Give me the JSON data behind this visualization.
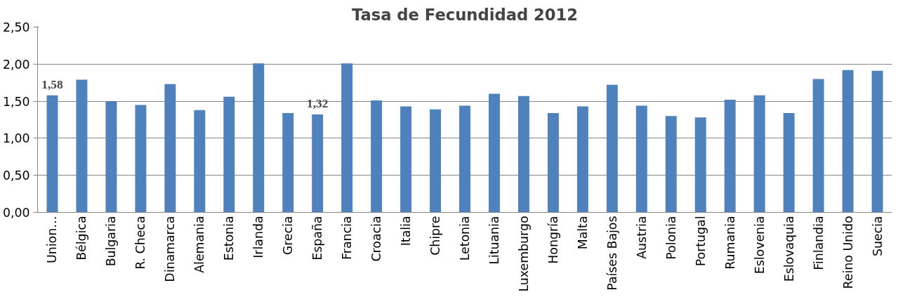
{
  "chart_data": {
    "type": "bar",
    "title": "Tasa de Fecundidad 2012",
    "categories": [
      "Union…",
      "Bélgica",
      "Bulgaria",
      "R. Checa",
      "Dinamarca",
      "Alemania",
      "Estonia",
      "Irlanda",
      "Grecia",
      "España",
      "Francia",
      "Croacia",
      "Italia",
      "Chipre",
      "Letonia",
      "Lituania",
      "Luxemburgo",
      "Hongría",
      "Malta",
      "Países Bajos",
      "Austria",
      "Polonia",
      "Portugal",
      "Rumania",
      "Eslovenia",
      "Eslovaquia",
      "Finlandia",
      "Reino Unido",
      "Suecia"
    ],
    "values": [
      1.58,
      1.79,
      1.5,
      1.45,
      1.73,
      1.38,
      1.56,
      2.01,
      1.34,
      1.32,
      2.01,
      1.51,
      1.43,
      1.39,
      1.44,
      1.6,
      1.57,
      1.34,
      1.43,
      1.72,
      1.44,
      1.3,
      1.28,
      1.52,
      1.58,
      1.34,
      1.8,
      1.92,
      1.91
    ],
    "value_labels": [
      "1,58",
      null,
      null,
      null,
      null,
      null,
      null,
      null,
      null,
      "1,32",
      null,
      null,
      null,
      null,
      null,
      null,
      null,
      null,
      null,
      null,
      null,
      null,
      null,
      null,
      null,
      null,
      null,
      null,
      null
    ],
    "color": "#4f81bd",
    "ylim": [
      0,
      2.5
    ],
    "yticks": [
      {
        "value": 0,
        "label": "0,00"
      },
      {
        "value": 0.5,
        "label": "0,50"
      },
      {
        "value": 1,
        "label": "1,00"
      },
      {
        "value": 1.5,
        "label": "1,50"
      },
      {
        "value": 2,
        "label": "2,00"
      },
      {
        "value": 2.5,
        "label": "2,50"
      }
    ],
    "grid": "y"
  }
}
